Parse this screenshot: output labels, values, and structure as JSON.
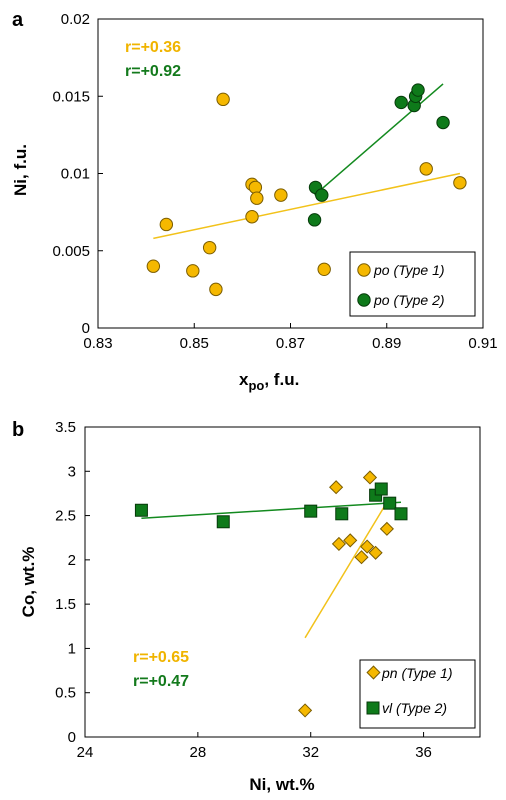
{
  "colors": {
    "type1": "#f5b800",
    "type1_stroke": "#7a5c00",
    "type2": "#0e7a1a",
    "type2_stroke": "#063a0a",
    "type1_line": "#f2c21a",
    "type2_line": "#138a1f"
  },
  "chart_data": [
    {
      "panel": "a",
      "type": "scatter",
      "xlabel_main": "x",
      "xlabel_sub": "po",
      "xlabel_rest": ", f.u.",
      "ylabel": "Ni, f.u.",
      "xlim": [
        0.83,
        0.91
      ],
      "ylim": [
        0,
        0.02
      ],
      "x_ticks": [
        "0.83",
        "0.85",
        "0.87",
        "0.89",
        "0.91"
      ],
      "y_ticks": [
        "0",
        "0.005",
        "0.01",
        "0.015",
        "0.02"
      ],
      "x_tick_values": [
        0.83,
        0.85,
        0.87,
        0.89,
        0.91
      ],
      "y_tick_values": [
        0,
        0.005,
        0.01,
        0.015,
        0.02
      ],
      "annotations": [
        "r=+0.36",
        "r=+0.92"
      ],
      "legend": [
        "po (Type 1)",
        "po (Type 2)"
      ],
      "legend_position": "bottom-right",
      "series": [
        {
          "name": "po (Type 1)",
          "marker": "circle",
          "points": [
            [
              0.8415,
              0.004
            ],
            [
              0.8442,
              0.0067
            ],
            [
              0.8497,
              0.0037
            ],
            [
              0.8532,
              0.0052
            ],
            [
              0.8545,
              0.0025
            ],
            [
              0.856,
              0.0148
            ],
            [
              0.862,
              0.0093
            ],
            [
              0.8627,
              0.0091
            ],
            [
              0.863,
              0.0084
            ],
            [
              0.862,
              0.0072
            ],
            [
              0.868,
              0.0086
            ],
            [
              0.877,
              0.0038
            ],
            [
              0.8982,
              0.0103
            ],
            [
              0.9052,
              0.0094
            ]
          ],
          "trend": [
            [
              0.8415,
              0.0058
            ],
            [
              0.9052,
              0.01
            ]
          ]
        },
        {
          "name": "po (Type 2)",
          "marker": "circle",
          "points": [
            [
              0.8752,
              0.0091
            ],
            [
              0.8765,
              0.0086
            ],
            [
              0.875,
              0.007
            ],
            [
              0.893,
              0.0146
            ],
            [
              0.8957,
              0.0144
            ],
            [
              0.896,
              0.015
            ],
            [
              0.8965,
              0.0154
            ],
            [
              0.9017,
              0.0133
            ]
          ],
          "trend": [
            [
              0.875,
              0.0086
            ],
            [
              0.9017,
              0.0158
            ]
          ]
        }
      ]
    },
    {
      "panel": "b",
      "type": "scatter",
      "xlabel": "Ni, wt.%",
      "ylabel": "Co, wt.%",
      "xlim": [
        24,
        38
      ],
      "ylim": [
        0,
        3.5
      ],
      "x_ticks": [
        "24",
        "28",
        "32",
        "36"
      ],
      "y_ticks": [
        "0",
        "0.5",
        "1",
        "1.5",
        "2",
        "2.5",
        "3",
        "3.5"
      ],
      "x_tick_values": [
        24,
        28,
        32,
        36
      ],
      "y_tick_values": [
        0,
        0.5,
        1,
        1.5,
        2,
        2.5,
        3,
        3.5
      ],
      "annotations": [
        "r=+0.65",
        "r=+0.47"
      ],
      "legend": [
        "pn (Type 1)",
        "vl (Type 2)"
      ],
      "legend_position": "bottom-right",
      "series": [
        {
          "name": "pn (Type 1)",
          "marker": "diamond",
          "points": [
            [
              31.8,
              0.3
            ],
            [
              32.9,
              2.82
            ],
            [
              33.0,
              2.18
            ],
            [
              33.4,
              2.22
            ],
            [
              33.8,
              2.03
            ],
            [
              34.0,
              2.15
            ],
            [
              34.1,
              2.93
            ],
            [
              34.3,
              2.08
            ],
            [
              34.7,
              2.35
            ]
          ],
          "trend": [
            [
              31.8,
              1.12
            ],
            [
              34.7,
              2.65
            ]
          ]
        },
        {
          "name": "vl (Type 2)",
          "marker": "square",
          "points": [
            [
              26.0,
              2.56
            ],
            [
              28.9,
              2.43
            ],
            [
              32.0,
              2.55
            ],
            [
              33.1,
              2.52
            ],
            [
              34.3,
              2.73
            ],
            [
              34.5,
              2.8
            ],
            [
              34.8,
              2.64
            ],
            [
              35.2,
              2.52
            ]
          ],
          "trend": [
            [
              26.0,
              2.47
            ],
            [
              35.2,
              2.65
            ]
          ]
        }
      ]
    }
  ]
}
